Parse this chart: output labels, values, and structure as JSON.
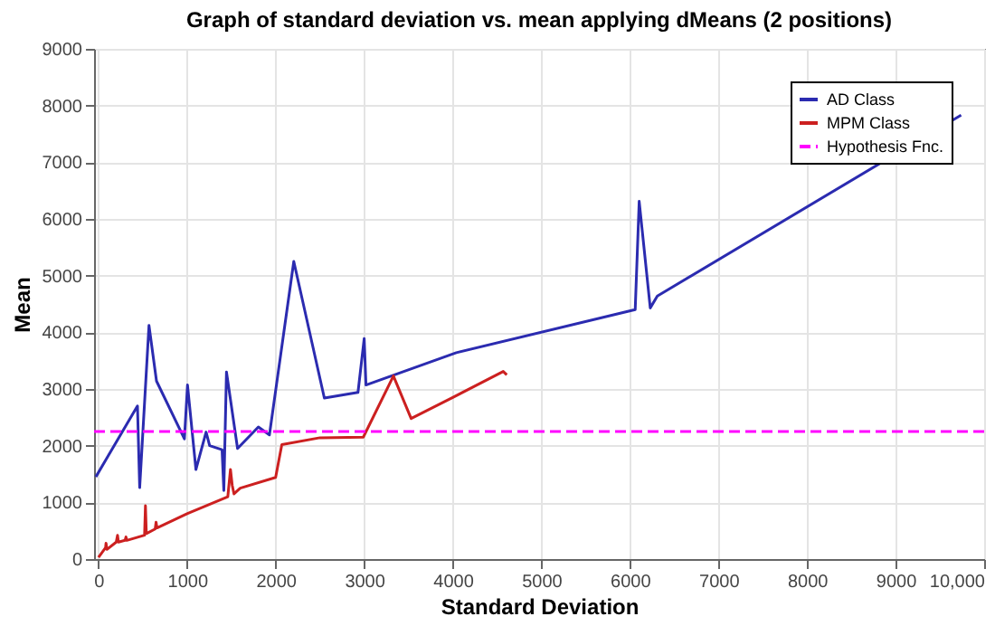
{
  "chart_data": {
    "type": "line",
    "title": "Graph of standard deviation vs. mean applying dMeans (2 positions)",
    "xlabel": "Standard Deviation",
    "ylabel": "Mean",
    "xlim": [
      -50,
      10000
    ],
    "xticks": [
      0,
      1000,
      2000,
      3000,
      4000,
      5000,
      6000,
      7000,
      8000,
      9000,
      {
        "value": 10000,
        "label": "10,000"
      }
    ],
    "ylim": [
      0,
      9000
    ],
    "yticks": [
      0,
      1000,
      2000,
      3000,
      4000,
      5000,
      6000,
      7000,
      8000,
      9000
    ],
    "grid": true,
    "legend": "top right",
    "marker": "none",
    "series": [
      {
        "name": "AD Class",
        "color": "#2b2bb0",
        "line_style": "solid",
        "x": [
          -30,
          440,
          465,
          570,
          655,
          970,
          1005,
          1100,
          1215,
          1255,
          1395,
          1415,
          1445,
          1570,
          1805,
          1930,
          2205,
          2550,
          2930,
          3000,
          3020,
          4040,
          6060,
          6105,
          6230,
          6310,
          9740
        ],
        "values": [
          1450,
          2700,
          1260,
          4120,
          3140,
          2120,
          3070,
          1580,
          2240,
          2000,
          1930,
          1210,
          3300,
          1950,
          2330,
          2190,
          5250,
          2840,
          2940,
          3890,
          3070,
          3640,
          4400,
          6310,
          4430,
          4640,
          7830
        ]
      },
      {
        "name": "MPM Class",
        "color": "#cc2020",
        "line_style": "solid",
        "x": [
          0,
          80,
          85,
          95,
          200,
          215,
          225,
          300,
          310,
          320,
          520,
          530,
          540,
          640,
          650,
          660,
          1000,
          1460,
          1490,
          1510,
          1530,
          1600,
          2000,
          2070,
          2500,
          2990,
          3330,
          3530,
          4000,
          4570,
          4610
        ],
        "values": [
          30,
          200,
          280,
          170,
          300,
          420,
          300,
          330,
          390,
          330,
          420,
          940,
          450,
          530,
          650,
          550,
          800,
          1100,
          1580,
          1300,
          1150,
          1250,
          1440,
          2020,
          2140,
          2150,
          3230,
          2480,
          2850,
          3310,
          3250
        ]
      },
      {
        "name": "Hypothesis Fnc.",
        "color": "#ff00ff",
        "line_style": "dashed",
        "x": [
          -50,
          10000
        ],
        "values": [
          2250,
          2250
        ]
      }
    ]
  }
}
